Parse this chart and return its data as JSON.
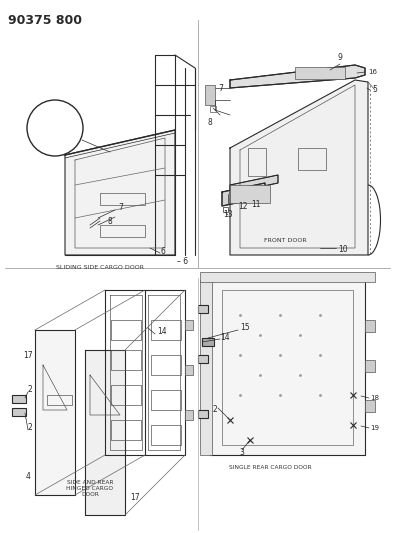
{
  "title": "90375 800",
  "bg": "#ffffff",
  "fw": 3.95,
  "fh": 5.33,
  "dpi": 100,
  "lc": "#2a2a2a",
  "labels": {
    "tl_caption": "SLIDING SIDE CARGO DOOR",
    "tr_caption": "FRONT DOOR",
    "bl_caption": "SIDE AND REAR\nHINGED CARGO\nDOOR",
    "br_caption": "SINGLE REAR CARGO DOOR"
  }
}
